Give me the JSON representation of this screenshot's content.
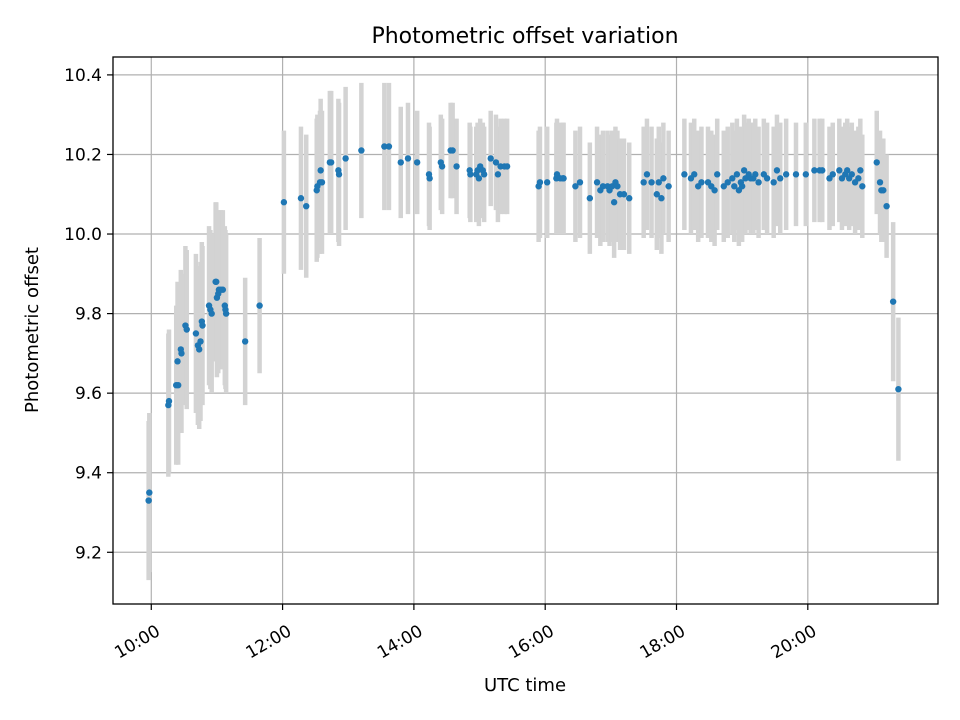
{
  "colors": {
    "point": "#1f77b4",
    "errorbar": "#d3d3d3",
    "grid": "#b0b0b0",
    "background": "#ffffff"
  },
  "chart_data": {
    "type": "scatter",
    "title": "Photometric offset variation",
    "xlabel": "UTC time",
    "ylabel": "Photometric offset",
    "xlim": [
      9.417,
      21.983
    ],
    "ylim": [
      9.07,
      10.445
    ],
    "grid": true,
    "x_ticks": [
      10,
      12,
      14,
      16,
      18,
      20
    ],
    "x_tick_labels": [
      "10:00",
      "12:00",
      "14:00",
      "16:00",
      "18:00",
      "20:00"
    ],
    "y_ticks": [
      9.2,
      9.4,
      9.6,
      9.8,
      10.0,
      10.2,
      10.4
    ],
    "y_tick_labels": [
      "9.2",
      "9.4",
      "9.6",
      "9.8",
      "10.0",
      "10.2",
      "10.4"
    ],
    "series": [
      {
        "points": [
          [
            9.96,
            9.33,
            0.2
          ],
          [
            9.97,
            9.35,
            0.2
          ],
          [
            10.26,
            9.57,
            0.18
          ],
          [
            10.27,
            9.58,
            0.18
          ],
          [
            10.38,
            9.62,
            0.2
          ],
          [
            10.4,
            9.68,
            0.2
          ],
          [
            10.41,
            9.62,
            0.2
          ],
          [
            10.45,
            9.71,
            0.2
          ],
          [
            10.46,
            9.7,
            0.2
          ],
          [
            10.52,
            9.77,
            0.2
          ],
          [
            10.54,
            9.76,
            0.2
          ],
          [
            10.68,
            9.75,
            0.2
          ],
          [
            10.71,
            9.72,
            0.2
          ],
          [
            10.73,
            9.71,
            0.2
          ],
          [
            10.75,
            9.73,
            0.2
          ],
          [
            10.77,
            9.78,
            0.2
          ],
          [
            10.78,
            9.77,
            0.2
          ],
          [
            10.88,
            9.82,
            0.2
          ],
          [
            10.9,
            9.81,
            0.2
          ],
          [
            10.92,
            9.8,
            0.2
          ],
          [
            10.98,
            9.88,
            0.2
          ],
          [
            10.99,
            9.88,
            0.2
          ],
          [
            11.0,
            9.84,
            0.2
          ],
          [
            11.02,
            9.85,
            0.2
          ],
          [
            11.03,
            9.86,
            0.2
          ],
          [
            11.06,
            9.86,
            0.2
          ],
          [
            11.09,
            9.86,
            0.2
          ],
          [
            11.12,
            9.82,
            0.2
          ],
          [
            11.13,
            9.81,
            0.2
          ],
          [
            11.14,
            9.8,
            0.2
          ],
          [
            11.43,
            9.73,
            0.16
          ],
          [
            11.65,
            9.82,
            0.17
          ],
          [
            12.02,
            10.08,
            0.18
          ],
          [
            12.28,
            10.09,
            0.18
          ],
          [
            12.36,
            10.07,
            0.18
          ],
          [
            12.52,
            10.11,
            0.18
          ],
          [
            12.53,
            10.12,
            0.18
          ],
          [
            12.57,
            10.13,
            0.18
          ],
          [
            12.58,
            10.16,
            0.18
          ],
          [
            12.6,
            10.13,
            0.18
          ],
          [
            12.72,
            10.18,
            0.18
          ],
          [
            12.74,
            10.18,
            0.18
          ],
          [
            12.85,
            10.16,
            0.18
          ],
          [
            12.86,
            10.15,
            0.18
          ],
          [
            12.96,
            10.19,
            0.18
          ],
          [
            13.2,
            10.21,
            0.17
          ],
          [
            13.55,
            10.22,
            0.16
          ],
          [
            13.62,
            10.22,
            0.16
          ],
          [
            13.8,
            10.18,
            0.14
          ],
          [
            13.91,
            10.19,
            0.14
          ],
          [
            14.05,
            10.18,
            0.13
          ],
          [
            14.23,
            10.15,
            0.13
          ],
          [
            14.24,
            10.14,
            0.13
          ],
          [
            14.41,
            10.18,
            0.12
          ],
          [
            14.43,
            10.17,
            0.12
          ],
          [
            14.56,
            10.21,
            0.12
          ],
          [
            14.59,
            10.21,
            0.12
          ],
          [
            14.65,
            10.17,
            0.12
          ],
          [
            14.85,
            10.16,
            0.12
          ],
          [
            14.86,
            10.15,
            0.12
          ],
          [
            14.95,
            10.15,
            0.12
          ],
          [
            14.97,
            10.16,
            0.12
          ],
          [
            14.99,
            10.14,
            0.12
          ],
          [
            15.01,
            10.17,
            0.12
          ],
          [
            15.05,
            10.16,
            0.12
          ],
          [
            15.07,
            10.15,
            0.12
          ],
          [
            15.17,
            10.19,
            0.12
          ],
          [
            15.25,
            10.18,
            0.12
          ],
          [
            15.28,
            10.15,
            0.12
          ],
          [
            15.32,
            10.17,
            0.12
          ],
          [
            15.38,
            10.17,
            0.12
          ],
          [
            15.42,
            10.17,
            0.12
          ],
          [
            15.9,
            10.12,
            0.14
          ],
          [
            15.92,
            10.13,
            0.14
          ],
          [
            16.03,
            10.13,
            0.14
          ],
          [
            16.17,
            10.14,
            0.14
          ],
          [
            16.18,
            10.15,
            0.14
          ],
          [
            16.23,
            10.14,
            0.14
          ],
          [
            16.27,
            10.14,
            0.14
          ],
          [
            16.28,
            10.14,
            0.14
          ],
          [
            16.46,
            10.12,
            0.14
          ],
          [
            16.53,
            10.13,
            0.14
          ],
          [
            16.68,
            10.09,
            0.14
          ],
          [
            16.79,
            10.13,
            0.14
          ],
          [
            16.84,
            10.11,
            0.14
          ],
          [
            16.88,
            10.12,
            0.14
          ],
          [
            16.95,
            10.12,
            0.14
          ],
          [
            16.98,
            10.11,
            0.14
          ],
          [
            17.02,
            10.12,
            0.14
          ],
          [
            17.05,
            10.08,
            0.14
          ],
          [
            17.07,
            10.13,
            0.14
          ],
          [
            17.1,
            10.12,
            0.14
          ],
          [
            17.14,
            10.1,
            0.14
          ],
          [
            17.2,
            10.1,
            0.14
          ],
          [
            17.28,
            10.09,
            0.14
          ],
          [
            17.5,
            10.13,
            0.14
          ],
          [
            17.55,
            10.15,
            0.14
          ],
          [
            17.62,
            10.13,
            0.14
          ],
          [
            17.7,
            10.1,
            0.14
          ],
          [
            17.73,
            10.13,
            0.14
          ],
          [
            17.77,
            10.09,
            0.14
          ],
          [
            17.8,
            10.14,
            0.14
          ],
          [
            17.88,
            10.12,
            0.14
          ],
          [
            18.12,
            10.15,
            0.14
          ],
          [
            18.22,
            10.14,
            0.14
          ],
          [
            18.27,
            10.15,
            0.14
          ],
          [
            18.33,
            10.12,
            0.14
          ],
          [
            18.38,
            10.13,
            0.14
          ],
          [
            18.48,
            10.13,
            0.14
          ],
          [
            18.53,
            10.12,
            0.14
          ],
          [
            18.58,
            10.11,
            0.14
          ],
          [
            18.62,
            10.15,
            0.14
          ],
          [
            18.72,
            10.12,
            0.14
          ],
          [
            18.78,
            10.13,
            0.14
          ],
          [
            18.85,
            10.14,
            0.14
          ],
          [
            18.88,
            10.12,
            0.14
          ],
          [
            18.92,
            10.15,
            0.14
          ],
          [
            18.95,
            10.11,
            0.14
          ],
          [
            18.98,
            10.13,
            0.14
          ],
          [
            19.0,
            10.12,
            0.14
          ],
          [
            19.03,
            10.16,
            0.14
          ],
          [
            19.05,
            10.14,
            0.14
          ],
          [
            19.1,
            10.15,
            0.14
          ],
          [
            19.13,
            10.14,
            0.14
          ],
          [
            19.17,
            10.14,
            0.14
          ],
          [
            19.2,
            10.15,
            0.14
          ],
          [
            19.25,
            10.13,
            0.14
          ],
          [
            19.33,
            10.15,
            0.14
          ],
          [
            19.38,
            10.14,
            0.14
          ],
          [
            19.48,
            10.13,
            0.14
          ],
          [
            19.53,
            10.16,
            0.14
          ],
          [
            19.58,
            10.14,
            0.14
          ],
          [
            19.67,
            10.15,
            0.14
          ],
          [
            19.82,
            10.15,
            0.13
          ],
          [
            19.97,
            10.15,
            0.13
          ],
          [
            20.1,
            10.16,
            0.13
          ],
          [
            20.18,
            10.16,
            0.13
          ],
          [
            20.22,
            10.16,
            0.13
          ],
          [
            20.33,
            10.14,
            0.13
          ],
          [
            20.38,
            10.15,
            0.13
          ],
          [
            20.48,
            10.16,
            0.13
          ],
          [
            20.52,
            10.14,
            0.13
          ],
          [
            20.57,
            10.15,
            0.13
          ],
          [
            20.6,
            10.16,
            0.13
          ],
          [
            20.63,
            10.14,
            0.13
          ],
          [
            20.67,
            10.15,
            0.13
          ],
          [
            20.72,
            10.13,
            0.13
          ],
          [
            20.77,
            10.14,
            0.13
          ],
          [
            20.8,
            10.16,
            0.13
          ],
          [
            20.83,
            10.12,
            0.13
          ],
          [
            21.05,
            10.18,
            0.13
          ],
          [
            21.1,
            10.13,
            0.13
          ],
          [
            21.12,
            10.11,
            0.13
          ],
          [
            21.15,
            10.11,
            0.13
          ],
          [
            21.2,
            10.07,
            0.13
          ],
          [
            21.3,
            9.83,
            0.2
          ],
          [
            21.38,
            9.61,
            0.18
          ]
        ]
      }
    ]
  }
}
